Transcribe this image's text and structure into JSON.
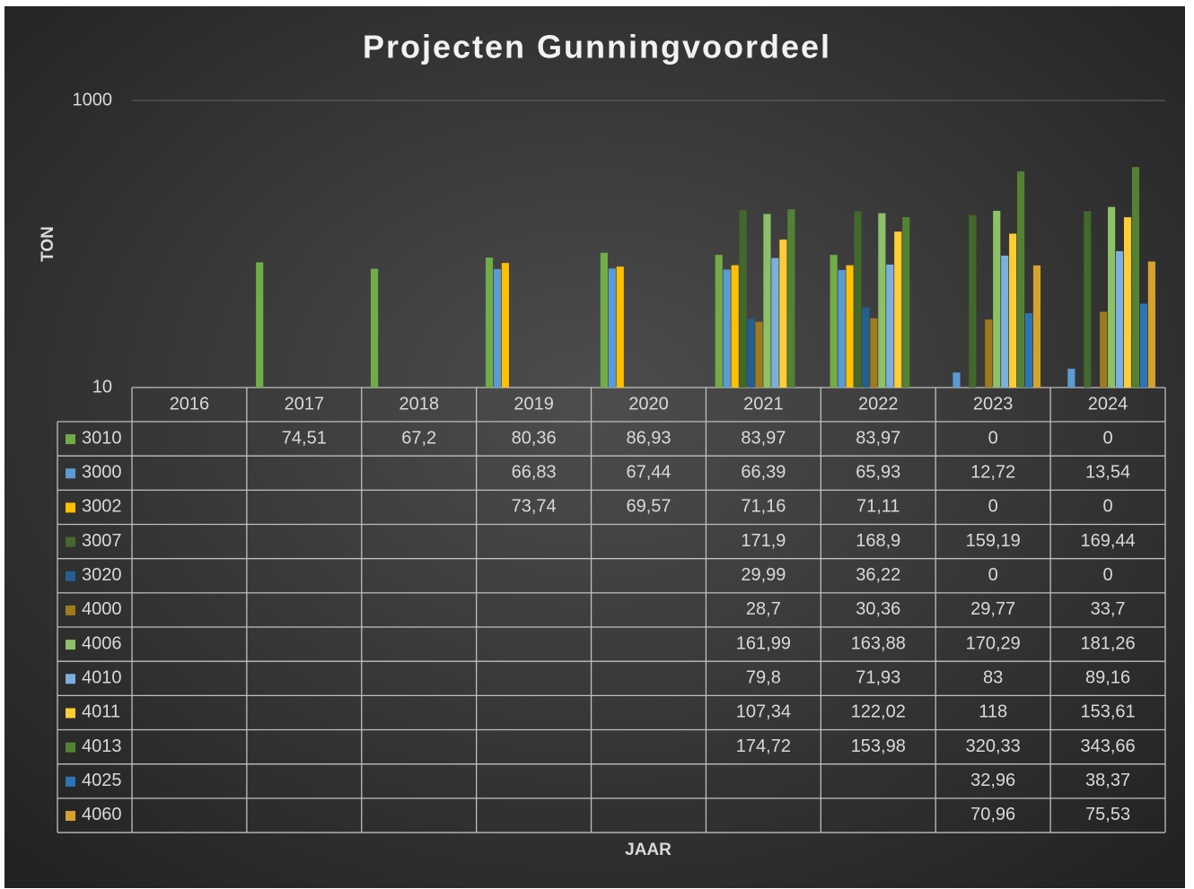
{
  "chart_data": {
    "type": "bar",
    "title": "Projecten Gunningvoordeel",
    "x_label": "JAAR",
    "y_label": "TON",
    "log_scale": true,
    "ylim": [
      10,
      1000
    ],
    "yticks": [
      10,
      1000
    ],
    "grid": true,
    "categories": [
      "2016",
      "2017",
      "2018",
      "2019",
      "2020",
      "2021",
      "2022",
      "2023",
      "2024"
    ],
    "series": [
      {
        "name": "3010",
        "color": "#70ad47",
        "values": [
          null,
          74.51,
          67.2,
          80.36,
          86.93,
          83.97,
          83.97,
          0,
          0
        ],
        "value_labels": [
          null,
          "74,51",
          "67,2",
          "80,36",
          "86,93",
          "83,97",
          "83,97",
          "0",
          "0"
        ]
      },
      {
        "name": "3000",
        "color": "#5b9bd5",
        "values": [
          null,
          null,
          null,
          66.83,
          67.44,
          66.39,
          65.93,
          12.72,
          13.54
        ],
        "value_labels": [
          null,
          null,
          null,
          "66,83",
          "67,44",
          "66,39",
          "65,93",
          "12,72",
          "13,54"
        ]
      },
      {
        "name": "3002",
        "color": "#ffc000",
        "values": [
          null,
          null,
          null,
          73.74,
          69.57,
          71.16,
          71.11,
          0,
          0
        ],
        "value_labels": [
          null,
          null,
          null,
          "73,74",
          "69,57",
          "71,16",
          "71,11",
          "0",
          "0"
        ]
      },
      {
        "name": "3007",
        "color": "#43682b",
        "values": [
          null,
          null,
          null,
          null,
          null,
          171.9,
          168.9,
          159.19,
          169.44
        ],
        "value_labels": [
          null,
          null,
          null,
          null,
          null,
          "171,9",
          "168,9",
          "159,19",
          "169,44"
        ]
      },
      {
        "name": "3020",
        "color": "#255e91",
        "values": [
          null,
          null,
          null,
          null,
          null,
          29.99,
          36.22,
          0,
          0
        ],
        "value_labels": [
          null,
          null,
          null,
          null,
          null,
          "29,99",
          "36,22",
          "0",
          "0"
        ]
      },
      {
        "name": "4000",
        "color": "#9e7b1c",
        "values": [
          null,
          null,
          null,
          null,
          null,
          28.7,
          30.36,
          29.77,
          33.7
        ],
        "value_labels": [
          null,
          null,
          null,
          null,
          null,
          "28,7",
          "30,36",
          "29,77",
          "33,7"
        ]
      },
      {
        "name": "4006",
        "color": "#8cc168",
        "values": [
          null,
          null,
          null,
          null,
          null,
          161.99,
          163.88,
          170.29,
          181.26
        ],
        "value_labels": [
          null,
          null,
          null,
          null,
          null,
          "161,99",
          "163,88",
          "170,29",
          "181,26"
        ]
      },
      {
        "name": "4010",
        "color": "#7cafdd",
        "values": [
          null,
          null,
          null,
          null,
          null,
          79.8,
          71.93,
          83,
          89.16
        ],
        "value_labels": [
          null,
          null,
          null,
          null,
          null,
          "79,8",
          "71,93",
          "83",
          "89,16"
        ]
      },
      {
        "name": "4011",
        "color": "#ffcd33",
        "values": [
          null,
          null,
          null,
          null,
          null,
          107.34,
          122.02,
          118,
          153.61
        ],
        "value_labels": [
          null,
          null,
          null,
          null,
          null,
          "107,34",
          "122,02",
          "118",
          "153,61"
        ]
      },
      {
        "name": "4013",
        "color": "#548235",
        "values": [
          null,
          null,
          null,
          null,
          null,
          174.72,
          153.98,
          320.33,
          343.66
        ],
        "value_labels": [
          null,
          null,
          null,
          null,
          null,
          "174,72",
          "153,98",
          "320,33",
          "343,66"
        ]
      },
      {
        "name": "4025",
        "color": "#2e75b6",
        "values": [
          null,
          null,
          null,
          null,
          null,
          null,
          null,
          32.96,
          38.37
        ],
        "value_labels": [
          null,
          null,
          null,
          null,
          null,
          null,
          null,
          "32,96",
          "38,37"
        ]
      },
      {
        "name": "4060",
        "color": "#d6a22f",
        "values": [
          null,
          null,
          null,
          null,
          null,
          null,
          null,
          70.96,
          75.53
        ],
        "value_labels": [
          null,
          null,
          null,
          null,
          null,
          null,
          null,
          "70,96",
          "75,53"
        ]
      }
    ]
  }
}
